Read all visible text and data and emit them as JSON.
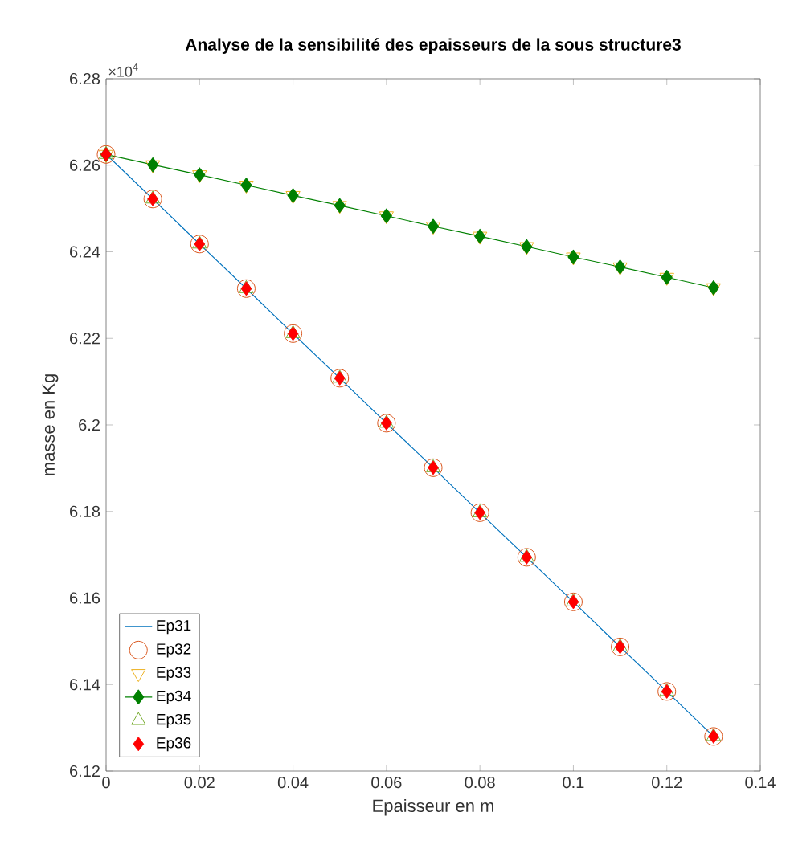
{
  "chart_data": {
    "type": "line",
    "title": "Analyse de la sensibilité des epaisseurs de la sous structure3",
    "xlabel": "Epaisseur en m",
    "ylabel": "masse en Kg",
    "annotations": [
      "×10$^{4}$"
    ],
    "x": [
      0,
      0.01,
      0.02,
      0.03,
      0.04,
      0.05,
      0.06,
      0.07,
      0.08,
      0.09,
      0.1,
      0.11,
      0.12,
      0.13
    ],
    "series": [
      {
        "name": "Ep31",
        "color": "#0072bd",
        "marker": "none",
        "values": [
          6.2625,
          6.2522,
          6.2418,
          6.2315,
          6.2211,
          6.2108,
          6.2004,
          6.1901,
          6.1797,
          6.1694,
          6.1591,
          6.1487,
          6.1384,
          6.128
        ]
      },
      {
        "name": "Ep32",
        "type": "scatter",
        "color": "#d95319",
        "marker": "circle",
        "values": [
          6.2625,
          6.2522,
          6.2418,
          6.2315,
          6.2211,
          6.2108,
          6.2004,
          6.1901,
          6.1797,
          6.1694,
          6.1591,
          6.1487,
          6.1384,
          6.128
        ]
      },
      {
        "name": "Ep33",
        "type": "scatter",
        "color": "#edb120",
        "marker": "triangle down",
        "values": [
          6.2625,
          6.2601,
          6.2578,
          6.2554,
          6.253,
          6.2507,
          6.2483,
          6.2459,
          6.2436,
          6.2412,
          6.2388,
          6.2365,
          6.2341,
          6.2317
        ]
      },
      {
        "name": "Ep34",
        "color": "#008000",
        "marker": "diamond",
        "values": [
          6.2625,
          6.2601,
          6.2578,
          6.2554,
          6.253,
          6.2507,
          6.2483,
          6.2459,
          6.2436,
          6.2412,
          6.2388,
          6.2365,
          6.2341,
          6.2317
        ]
      },
      {
        "name": "Ep35",
        "type": "scatter",
        "color": "#77ac30",
        "marker": "triangle",
        "values": [
          6.2625,
          6.2522,
          6.2418,
          6.2315,
          6.2211,
          6.2108,
          6.2004,
          6.1901,
          6.1797,
          6.1694,
          6.1591,
          6.1487,
          6.1384,
          6.128
        ]
      },
      {
        "name": "Ep36",
        "type": "scatter",
        "color": "#ff0000",
        "marker": "diamond",
        "values": [
          6.2625,
          6.2522,
          6.2418,
          6.2315,
          6.2211,
          6.2108,
          6.2004,
          6.1901,
          6.1797,
          6.1694,
          6.1591,
          6.1487,
          6.1384,
          6.128
        ]
      }
    ],
    "xlim": [
      0,
      0.14
    ],
    "xticks": [
      0,
      0.02,
      0.04,
      0.06,
      0.08,
      0.1,
      0.12,
      0.14
    ],
    "ylim": [
      6.12,
      6.28
    ],
    "yticks": [
      6.12,
      6.14,
      6.16,
      6.18,
      6.2,
      6.22,
      6.24,
      6.26,
      6.28
    ],
    "grid": false,
    "legend": "bottom left",
    "line_style": "solid"
  }
}
